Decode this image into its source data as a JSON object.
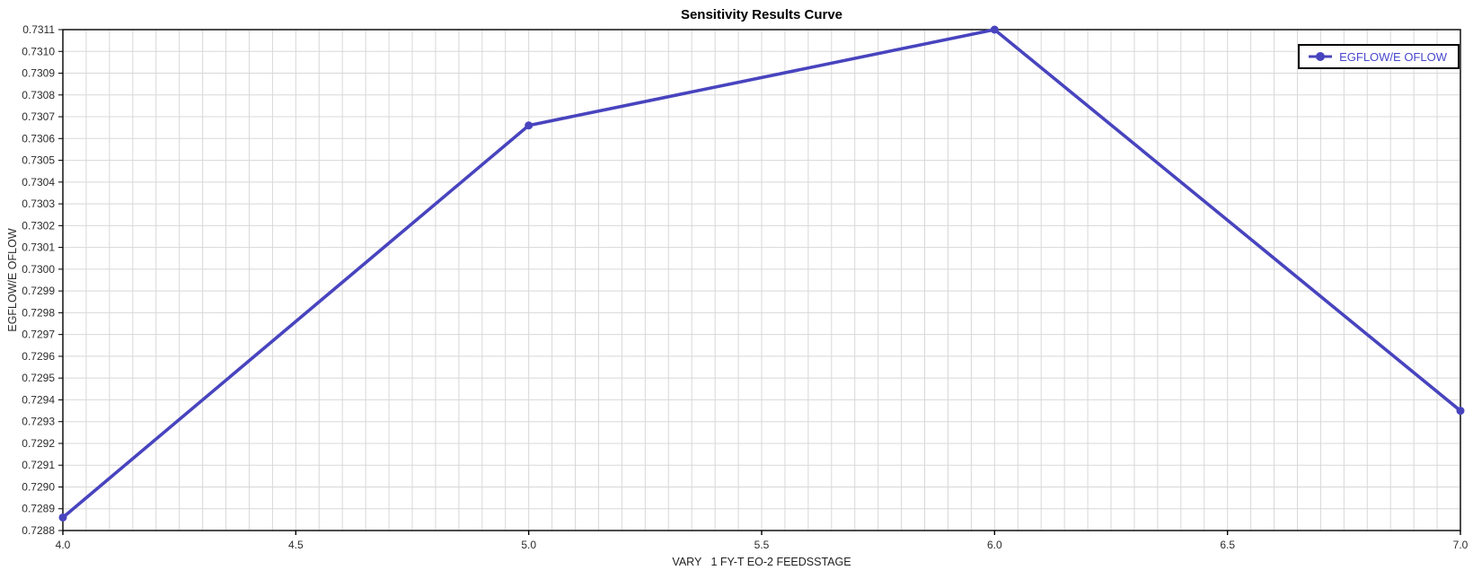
{
  "window": {
    "title": "Sensitivity Results Curve"
  },
  "colors": {
    "line": "#4844be",
    "marker": "#4844be",
    "legend_text": "#4747cd",
    "grid": "#d8d8d8",
    "axis": "#000000",
    "tick_label": "#2b2b2b",
    "background": "#ffffff"
  },
  "legend": {
    "label": "EGFLOW/E OFLOW",
    "position": "top-right"
  },
  "chart_data": {
    "type": "line",
    "title": "Sensitivity Results Curve",
    "xlabel": "VARY   1 FY-T EO-2 FEEDSSTAGE",
    "ylabel": "EGFLOW/E OFLOW",
    "x": [
      4.0,
      5.0,
      6.0,
      7.0
    ],
    "series": [
      {
        "name": "EGFLOW/E OFLOW",
        "values": [
          0.72886,
          0.73066,
          0.7311,
          0.72935
        ]
      }
    ],
    "xlim": [
      4.0,
      7.0
    ],
    "ylim": [
      0.7288,
      0.7311
    ],
    "x_major_ticks": [
      4.0,
      4.5,
      5.0,
      5.5,
      6.0,
      6.5,
      7.0
    ],
    "x_minor_step": 0.05,
    "y_tick_step": 0.0001,
    "x_tick_decimals": 1,
    "y_tick_decimals": 4,
    "grid": true,
    "legend_position": "top-right"
  }
}
